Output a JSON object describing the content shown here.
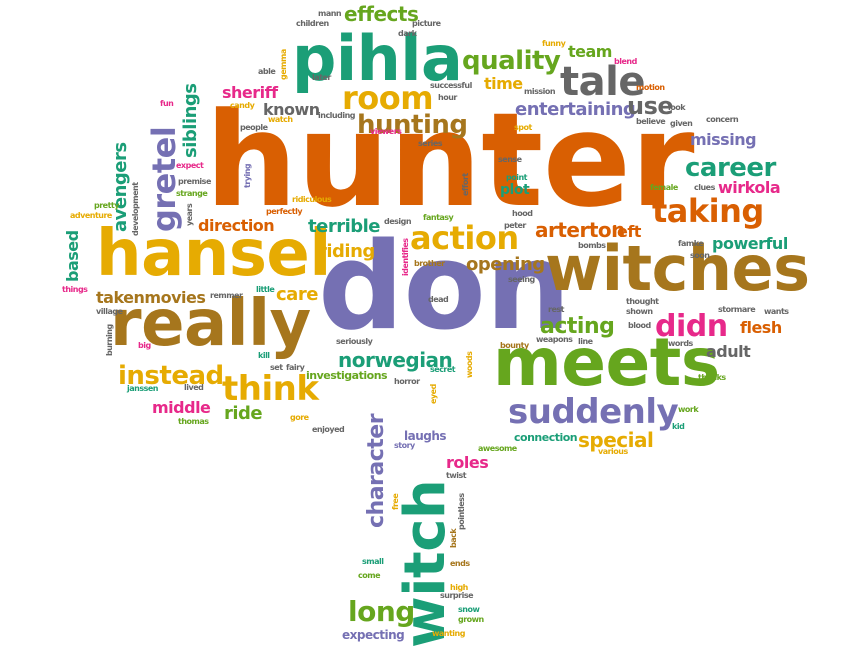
{
  "palette": {
    "orange": "#d95f02",
    "purple": "#7570b3",
    "green": "#1b9e77",
    "gold": "#e6ab02",
    "pink": "#e7298a",
    "brown": "#a6761d",
    "gray": "#666666",
    "lime": "#66a61e"
  },
  "words": [
    {
      "text": "hunter",
      "color": "orange"
    },
    {
      "text": "don",
      "color": "purple"
    },
    {
      "text": "witches",
      "color": "brown"
    },
    {
      "text": "hansel",
      "color": "gold"
    },
    {
      "text": "really",
      "color": "brown"
    },
    {
      "text": "meets",
      "color": "lime"
    },
    {
      "text": "pihla",
      "color": "green"
    },
    {
      "text": "witch",
      "color": "green"
    },
    {
      "text": "tale",
      "color": "gray"
    },
    {
      "text": "suddenly",
      "color": "purple"
    },
    {
      "text": "action",
      "color": "gold"
    },
    {
      "text": "taking",
      "color": "orange"
    },
    {
      "text": "think",
      "color": "gold"
    },
    {
      "text": "room",
      "color": "gold"
    },
    {
      "text": "gretel",
      "color": "purple"
    },
    {
      "text": "quality",
      "color": "lime"
    },
    {
      "text": "hunting",
      "color": "brown"
    },
    {
      "text": "career",
      "color": "green"
    },
    {
      "text": "didn",
      "color": "pink"
    },
    {
      "text": "instead",
      "color": "gold"
    },
    {
      "text": "long",
      "color": "lime"
    },
    {
      "text": "norwegian",
      "color": "green"
    },
    {
      "text": "acting",
      "color": "lime"
    },
    {
      "text": "arterton",
      "color": "orange"
    },
    {
      "text": "powerful",
      "color": "green"
    },
    {
      "text": "flesh",
      "color": "orange"
    },
    {
      "text": "character",
      "color": "purple"
    },
    {
      "text": "special",
      "color": "gold"
    },
    {
      "text": "entertaining",
      "color": "purple"
    },
    {
      "text": "effects",
      "color": "lime"
    },
    {
      "text": "known",
      "color": "gray"
    },
    {
      "text": "sheriff",
      "color": "pink"
    },
    {
      "text": "terrible",
      "color": "green"
    },
    {
      "text": "opening",
      "color": "brown"
    },
    {
      "text": "riding",
      "color": "gold"
    },
    {
      "text": "use",
      "color": "gray"
    },
    {
      "text": "direction",
      "color": "orange"
    },
    {
      "text": "missing",
      "color": "purple"
    },
    {
      "text": "wirkola",
      "color": "pink"
    },
    {
      "text": "avengers",
      "color": "green"
    },
    {
      "text": "siblings",
      "color": "green"
    },
    {
      "text": "based",
      "color": "green"
    },
    {
      "text": "takenmovies",
      "color": "brown"
    },
    {
      "text": "care",
      "color": "gold"
    },
    {
      "text": "ride",
      "color": "lime"
    },
    {
      "text": "middle",
      "color": "pink"
    },
    {
      "text": "roles",
      "color": "pink"
    },
    {
      "text": "team",
      "color": "lime"
    },
    {
      "text": "time",
      "color": "gold"
    },
    {
      "text": "adult",
      "color": "gray"
    },
    {
      "text": "left",
      "color": "orange"
    },
    {
      "text": "investigations",
      "color": "lime"
    },
    {
      "text": "left",
      "color": "orange"
    },
    {
      "text": "connection",
      "color": "green"
    },
    {
      "text": "expecting",
      "color": "purple"
    },
    {
      "text": "laughs",
      "color": "purple"
    },
    {
      "text": "plot",
      "color": "green"
    },
    {
      "text": "fantasy",
      "color": "lime"
    },
    {
      "text": "seriously",
      "color": "gray"
    },
    {
      "text": "janssen",
      "color": "green"
    },
    {
      "text": "thomas",
      "color": "lime"
    },
    {
      "text": "enjoyed",
      "color": "gray"
    },
    {
      "text": "awesome",
      "color": "lime"
    },
    {
      "text": "story",
      "color": "purple"
    },
    {
      "text": "small",
      "color": "green"
    },
    {
      "text": "come",
      "color": "lime"
    },
    {
      "text": "surprise",
      "color": "gray"
    },
    {
      "text": "high",
      "color": "gold"
    },
    {
      "text": "snow",
      "color": "green"
    },
    {
      "text": "grown",
      "color": "lime"
    },
    {
      "text": "wanting",
      "color": "gold"
    },
    {
      "text": "pointless",
      "color": "gray"
    },
    {
      "text": "twist",
      "color": "gray"
    },
    {
      "text": "back",
      "color": "brown"
    },
    {
      "text": "ends",
      "color": "brown"
    },
    {
      "text": "free",
      "color": "gold"
    },
    {
      "text": "various",
      "color": "gold"
    },
    {
      "text": "kid",
      "color": "green"
    },
    {
      "text": "work",
      "color": "lime"
    },
    {
      "text": "thanks",
      "color": "lime"
    },
    {
      "text": "woods",
      "color": "gold"
    },
    {
      "text": "eyed",
      "color": "gold"
    },
    {
      "text": "secret",
      "color": "green"
    },
    {
      "text": "horror",
      "color": "gray"
    },
    {
      "text": "set",
      "color": "gray"
    },
    {
      "text": "fairy",
      "color": "gray"
    },
    {
      "text": "kill",
      "color": "green"
    },
    {
      "text": "gore",
      "color": "gold"
    },
    {
      "text": "lived",
      "color": "gray"
    },
    {
      "text": "big",
      "color": "pink"
    },
    {
      "text": "burning",
      "color": "gray"
    },
    {
      "text": "village",
      "color": "gray"
    },
    {
      "text": "things",
      "color": "pink"
    },
    {
      "text": "adventure",
      "color": "gold"
    },
    {
      "text": "pretty",
      "color": "lime"
    },
    {
      "text": "years",
      "color": "gray"
    },
    {
      "text": "development",
      "color": "gray"
    },
    {
      "text": "premise",
      "color": "gray"
    },
    {
      "text": "strange",
      "color": "lime"
    },
    {
      "text": "expect",
      "color": "pink"
    },
    {
      "text": "fun",
      "color": "pink"
    },
    {
      "text": "candy",
      "color": "gold"
    },
    {
      "text": "watch",
      "color": "gold"
    },
    {
      "text": "people",
      "color": "gray"
    },
    {
      "text": "trying",
      "color": "purple"
    },
    {
      "text": "perfectly",
      "color": "orange"
    },
    {
      "text": "ridiculous",
      "color": "gold"
    },
    {
      "text": "design",
      "color": "gray"
    },
    {
      "text": "little",
      "color": "green"
    },
    {
      "text": "remmer",
      "color": "gray"
    },
    {
      "text": "brother",
      "color": "brown"
    },
    {
      "text": "identifies",
      "color": "pink"
    },
    {
      "text": "dead",
      "color": "gray"
    },
    {
      "text": "bounty",
      "color": "brown"
    },
    {
      "text": "weapons",
      "color": "gray"
    },
    {
      "text": "line",
      "color": "gray"
    },
    {
      "text": "rest",
      "color": "gray"
    },
    {
      "text": "seeing",
      "color": "gray"
    },
    {
      "text": "peter",
      "color": "gray"
    },
    {
      "text": "hood",
      "color": "gray"
    },
    {
      "text": "bombs",
      "color": "gray"
    },
    {
      "text": "blood",
      "color": "gray"
    },
    {
      "text": "shown",
      "color": "gray"
    },
    {
      "text": "thought",
      "color": "gray"
    },
    {
      "text": "stormare",
      "color": "gray"
    },
    {
      "text": "words",
      "color": "gray"
    },
    {
      "text": "wants",
      "color": "gray"
    },
    {
      "text": "soon",
      "color": "gray"
    },
    {
      "text": "famke",
      "color": "gray"
    },
    {
      "text": "clues",
      "color": "gray"
    },
    {
      "text": "female",
      "color": "lime"
    },
    {
      "text": "effort",
      "color": "gray"
    },
    {
      "text": "point",
      "color": "green"
    },
    {
      "text": "sense",
      "color": "gray"
    },
    {
      "text": "series",
      "color": "gray"
    },
    {
      "text": "viewers",
      "color": "pink"
    },
    {
      "text": "spot",
      "color": "gold"
    },
    {
      "text": "believe",
      "color": "gray"
    },
    {
      "text": "given",
      "color": "gray"
    },
    {
      "text": "look",
      "color": "gray"
    },
    {
      "text": "concern",
      "color": "gray"
    },
    {
      "text": "motion",
      "color": "orange"
    },
    {
      "text": "blend",
      "color": "pink"
    },
    {
      "text": "funny",
      "color": "gold"
    },
    {
      "text": "successful",
      "color": "gray"
    },
    {
      "text": "mission",
      "color": "gray"
    },
    {
      "text": "hour",
      "color": "gray"
    },
    {
      "text": "picture",
      "color": "gray"
    },
    {
      "text": "dark",
      "color": "gray"
    },
    {
      "text": "children",
      "color": "gray"
    },
    {
      "text": "mann",
      "color": "gray"
    },
    {
      "text": "later",
      "color": "gray"
    },
    {
      "text": "able",
      "color": "gray"
    },
    {
      "text": "gemma",
      "color": "gold"
    },
    {
      "text": "including",
      "color": "gray"
    },
    {
      "text": "attack",
      "color": "gray"
    }
  ]
}
